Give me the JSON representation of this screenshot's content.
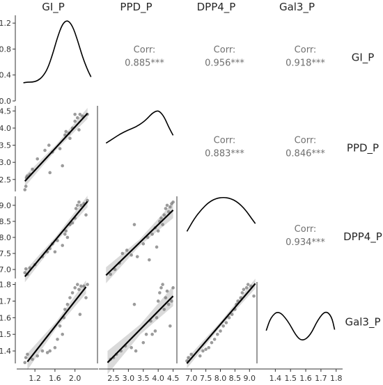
{
  "chart_data": {
    "type": "scatter",
    "title": "",
    "variables": [
      "GI_P",
      "PPD_P",
      "DPP4_P",
      "Gal3_P"
    ],
    "axes": {
      "GI_P": {
        "lim": [
          0.92,
          2.38
        ],
        "ticks": [
          1.2,
          1.6,
          2.0
        ],
        "tick_labels": [
          "1.2",
          "1.6",
          "2.0"
        ]
      },
      "PPD_P": {
        "lim": [
          2.15,
          4.65
        ],
        "ticks": [
          2.5,
          3.0,
          3.5,
          4.0,
          4.5
        ],
        "tick_labels": [
          "2.5",
          "3.0",
          "3.5",
          "4.0",
          "4.5"
        ]
      },
      "DPP4_P": {
        "lim": [
          6.72,
          9.28
        ],
        "ticks": [
          7.0,
          7.5,
          8.0,
          8.5,
          9.0
        ],
        "tick_labels": [
          "7.0",
          "7.5",
          "8.0",
          "8.5",
          "9.0"
        ]
      },
      "Gal3_P": {
        "lim": [
          1.325,
          1.815
        ],
        "ticks": [
          1.4,
          1.5,
          1.6,
          1.7,
          1.8
        ],
        "tick_labels": [
          "1.4",
          "1.5",
          "1.6",
          "1.7",
          "1.8"
        ]
      }
    },
    "diag_density_axis": {
      "lim": [
        0,
        1.32
      ],
      "ticks": [
        0.0,
        0.4,
        0.8,
        1.2
      ],
      "tick_labels": [
        "0.0",
        "0.4",
        "0.8",
        "1.2"
      ]
    },
    "correlations": [
      {
        "row": "GI_P",
        "col": "PPD_P",
        "label": "Corr:",
        "value": "0.885***"
      },
      {
        "row": "GI_P",
        "col": "DPP4_P",
        "label": "Corr:",
        "value": "0.956***"
      },
      {
        "row": "GI_P",
        "col": "Gal3_P",
        "label": "Corr:",
        "value": "0.918***"
      },
      {
        "row": "PPD_P",
        "col": "DPP4_P",
        "label": "Corr:",
        "value": "0.883***"
      },
      {
        "row": "PPD_P",
        "col": "Gal3_P",
        "label": "Corr:",
        "value": "0.846***"
      },
      {
        "row": "DPP4_P",
        "col": "Gal3_P",
        "label": "Corr:",
        "value": "0.934***"
      }
    ],
    "densities": [
      {
        "var": "GI_P",
        "x": [
          0.97,
          1.05,
          1.15,
          1.25,
          1.35,
          1.45,
          1.55,
          1.65,
          1.75,
          1.85,
          1.95,
          2.05,
          2.15,
          2.25,
          2.32
        ],
        "y": [
          0.28,
          0.29,
          0.29,
          0.31,
          0.37,
          0.49,
          0.71,
          0.98,
          1.19,
          1.25,
          1.16,
          0.94,
          0.68,
          0.48,
          0.37
        ]
      },
      {
        "var": "PPD_P",
        "x": [
          2.25,
          2.5,
          2.75,
          3.0,
          3.25,
          3.5,
          3.65,
          3.8,
          3.95,
          4.05,
          4.2,
          4.35,
          4.5
        ],
        "y": [
          0.47,
          0.55,
          0.63,
          0.69,
          0.74,
          0.82,
          0.89,
          0.97,
          1.01,
          1.0,
          0.91,
          0.74,
          0.6
        ]
      },
      {
        "var": "DPP4_P",
        "x": [
          6.85,
          7.1,
          7.35,
          7.6,
          7.85,
          8.1,
          8.35,
          8.6,
          8.85,
          9.1,
          9.2
        ],
        "y": [
          0.1,
          0.18,
          0.24,
          0.285,
          0.31,
          0.317,
          0.31,
          0.285,
          0.24,
          0.175,
          0.15
        ]
      },
      {
        "var": "Gal3_P",
        "x": [
          1.34,
          1.37,
          1.42,
          1.48,
          1.54,
          1.58,
          1.63,
          1.68,
          1.73,
          1.77,
          1.79
        ],
        "y": [
          2.1,
          2.38,
          2.52,
          2.32,
          1.97,
          1.88,
          2.0,
          2.33,
          2.52,
          2.4,
          2.12
        ]
      }
    ],
    "scatter_panels": [
      {
        "row": "PPD_P",
        "col": "GI_P",
        "points": [
          [
            1.0,
            2.2
          ],
          [
            1.02,
            2.3
          ],
          [
            1.03,
            2.55
          ],
          [
            1.05,
            2.6
          ],
          [
            1.1,
            2.65
          ],
          [
            1.15,
            2.8
          ],
          [
            1.25,
            3.1
          ],
          [
            1.4,
            3.35
          ],
          [
            1.48,
            3.5
          ],
          [
            1.5,
            2.7
          ],
          [
            1.55,
            3.3
          ],
          [
            1.7,
            3.4
          ],
          [
            1.75,
            2.9
          ],
          [
            1.8,
            3.8
          ],
          [
            1.82,
            3.9
          ],
          [
            1.88,
            3.85
          ],
          [
            1.9,
            3.7
          ],
          [
            1.95,
            4.0
          ],
          [
            2.0,
            4.2
          ],
          [
            2.0,
            4.4
          ],
          [
            2.05,
            4.3
          ],
          [
            2.08,
            3.95
          ],
          [
            2.1,
            4.4
          ],
          [
            2.15,
            4.35
          ],
          [
            2.25,
            4.4
          ]
        ],
        "fit": [
          [
            1.0,
            2.45
          ],
          [
            2.25,
            4.43
          ]
        ],
        "band": [
          0.16,
          0.08,
          0.16
        ]
      },
      {
        "row": "DPP4_P",
        "col": "GI_P",
        "points": [
          [
            1.0,
            6.9
          ],
          [
            1.02,
            7.02
          ],
          [
            1.05,
            6.85
          ],
          [
            1.1,
            7.05
          ],
          [
            1.2,
            7.15
          ],
          [
            1.35,
            7.4
          ],
          [
            1.45,
            7.55
          ],
          [
            1.5,
            7.65
          ],
          [
            1.55,
            7.8
          ],
          [
            1.6,
            7.55
          ],
          [
            1.65,
            7.9
          ],
          [
            1.75,
            7.75
          ],
          [
            1.8,
            8.1
          ],
          [
            1.82,
            8.2
          ],
          [
            1.85,
            8.0
          ],
          [
            1.9,
            8.4
          ],
          [
            1.95,
            8.45
          ],
          [
            2.0,
            8.6
          ],
          [
            2.02,
            8.9
          ],
          [
            2.05,
            9.0
          ],
          [
            2.08,
            9.1
          ],
          [
            2.12,
            9.0
          ],
          [
            2.18,
            9.05
          ],
          [
            2.22,
            8.7
          ],
          [
            2.25,
            9.15
          ]
        ],
        "fit": [
          [
            1.0,
            6.78
          ],
          [
            2.25,
            9.12
          ]
        ],
        "band": [
          0.18,
          0.09,
          0.18
        ]
      },
      {
        "row": "Gal3_P",
        "col": "GI_P",
        "points": [
          [
            1.0,
            1.33
          ],
          [
            1.02,
            1.36
          ],
          [
            1.05,
            1.38
          ],
          [
            1.15,
            1.35
          ],
          [
            1.25,
            1.37
          ],
          [
            1.35,
            1.4
          ],
          [
            1.45,
            1.39
          ],
          [
            1.5,
            1.4
          ],
          [
            1.6,
            1.42
          ],
          [
            1.65,
            1.47
          ],
          [
            1.7,
            1.55
          ],
          [
            1.75,
            1.5
          ],
          [
            1.78,
            1.6
          ],
          [
            1.8,
            1.65
          ],
          [
            1.85,
            1.68
          ],
          [
            1.9,
            1.72
          ],
          [
            1.95,
            1.75
          ],
          [
            2.0,
            1.78
          ],
          [
            2.05,
            1.8
          ],
          [
            2.08,
            1.77
          ],
          [
            2.1,
            1.62
          ],
          [
            2.12,
            1.79
          ],
          [
            2.18,
            1.79
          ],
          [
            2.22,
            1.72
          ],
          [
            2.25,
            1.8
          ]
        ],
        "fit": [
          [
            1.05,
            1.335
          ],
          [
            2.22,
            1.785
          ]
        ],
        "band": [
          0.05,
          0.02,
          0.04
        ]
      },
      {
        "row": "DPP4_P",
        "col": "PPD_P",
        "points": [
          [
            2.4,
            6.85
          ],
          [
            2.55,
            7.0
          ],
          [
            2.7,
            7.2
          ],
          [
            2.8,
            7.5
          ],
          [
            2.95,
            7.6
          ],
          [
            3.1,
            7.45
          ],
          [
            3.2,
            8.4
          ],
          [
            3.3,
            7.4
          ],
          [
            3.5,
            7.8
          ],
          [
            3.65,
            8.0
          ],
          [
            3.7,
            7.3
          ],
          [
            3.8,
            8.1
          ],
          [
            3.9,
            8.3
          ],
          [
            3.95,
            7.7
          ],
          [
            4.0,
            8.2
          ],
          [
            4.05,
            8.5
          ],
          [
            4.1,
            8.6
          ],
          [
            4.15,
            8.4
          ],
          [
            4.2,
            8.7
          ],
          [
            4.25,
            8.9
          ],
          [
            4.3,
            9.0
          ],
          [
            4.35,
            8.8
          ],
          [
            4.4,
            8.95
          ],
          [
            4.45,
            9.05
          ],
          [
            4.5,
            9.1
          ]
        ],
        "fit": [
          [
            2.25,
            6.82
          ],
          [
            4.5,
            8.85
          ]
        ],
        "band": [
          0.25,
          0.1,
          0.25
        ]
      },
      {
        "row": "Gal3_P",
        "col": "PPD_P",
        "points": [
          [
            2.4,
            1.35
          ],
          [
            2.5,
            1.36
          ],
          [
            2.6,
            1.38
          ],
          [
            2.75,
            1.4
          ],
          [
            2.9,
            1.43
          ],
          [
            3.1,
            1.42
          ],
          [
            3.2,
            1.68
          ],
          [
            3.25,
            1.4
          ],
          [
            3.5,
            1.45
          ],
          [
            3.6,
            1.5
          ],
          [
            3.75,
            1.58
          ],
          [
            3.8,
            1.5
          ],
          [
            3.9,
            1.52
          ],
          [
            3.95,
            1.6
          ],
          [
            4.0,
            1.7
          ],
          [
            4.05,
            1.75
          ],
          [
            4.1,
            1.78
          ],
          [
            4.15,
            1.8
          ],
          [
            4.2,
            1.65
          ],
          [
            4.25,
            1.72
          ],
          [
            4.3,
            1.76
          ],
          [
            4.35,
            1.68
          ],
          [
            4.4,
            1.55
          ],
          [
            4.45,
            1.7
          ],
          [
            4.5,
            1.78
          ]
        ],
        "fit": [
          [
            2.3,
            1.33
          ],
          [
            4.5,
            1.73
          ]
        ],
        "band": [
          0.07,
          0.03,
          0.06
        ]
      },
      {
        "row": "Gal3_P",
        "col": "DPP4_P",
        "points": [
          [
            6.85,
            1.34
          ],
          [
            6.9,
            1.36
          ],
          [
            7.0,
            1.38
          ],
          [
            7.3,
            1.37
          ],
          [
            7.4,
            1.4
          ],
          [
            7.5,
            1.41
          ],
          [
            7.6,
            1.42
          ],
          [
            7.7,
            1.45
          ],
          [
            7.8,
            1.47
          ],
          [
            7.9,
            1.5
          ],
          [
            8.0,
            1.52
          ],
          [
            8.1,
            1.55
          ],
          [
            8.2,
            1.57
          ],
          [
            8.3,
            1.6
          ],
          [
            8.4,
            1.62
          ],
          [
            8.5,
            1.65
          ],
          [
            8.55,
            1.68
          ],
          [
            8.6,
            1.7
          ],
          [
            8.7,
            1.72
          ],
          [
            8.75,
            1.75
          ],
          [
            8.8,
            1.77
          ],
          [
            8.9,
            1.78
          ],
          [
            8.95,
            1.8
          ],
          [
            9.05,
            1.79
          ],
          [
            9.15,
            1.73
          ]
        ],
        "fit": [
          [
            6.85,
            1.325
          ],
          [
            9.2,
            1.805
          ]
        ],
        "band": [
          0.03,
          0.015,
          0.03
        ]
      }
    ]
  }
}
